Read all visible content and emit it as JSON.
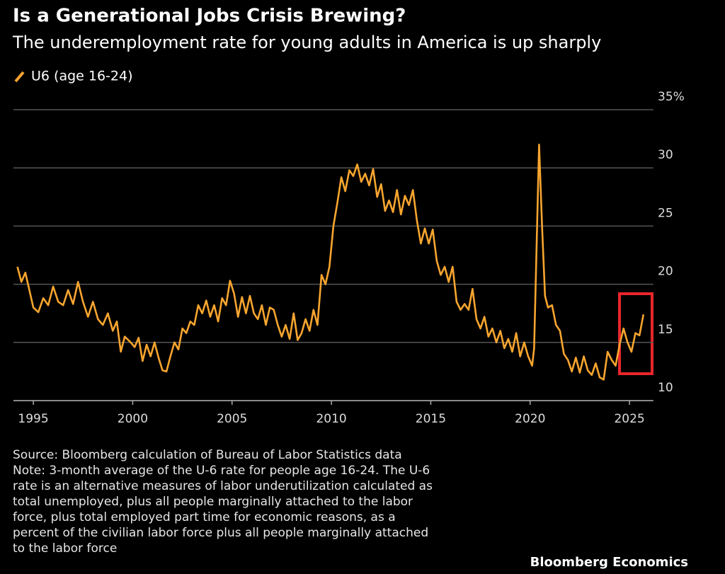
{
  "chart_data": {
    "type": "line",
    "title": "Is a Generational Jobs Crisis Brewing?",
    "subtitle": "The underemployment rate for young adults in America is up sharply",
    "x": [
      1994.2,
      1994.4,
      1994.6,
      1995.0,
      1995.25,
      1995.5,
      1995.75,
      1996.0,
      1996.25,
      1996.5,
      1996.75,
      1997.0,
      1997.25,
      1997.5,
      1997.75,
      1998.0,
      1998.25,
      1998.5,
      1998.75,
      1999.0,
      1999.2,
      1999.4,
      1999.6,
      1999.9,
      2000.1,
      2000.3,
      2000.5,
      2000.7,
      2000.9,
      2001.1,
      2001.3,
      2001.5,
      2001.7,
      2001.9,
      2002.1,
      2002.3,
      2002.5,
      2002.7,
      2002.9,
      2003.1,
      2003.3,
      2003.5,
      2003.7,
      2003.9,
      2004.1,
      2004.3,
      2004.5,
      2004.7,
      2004.9,
      2005.1,
      2005.3,
      2005.5,
      2005.7,
      2005.9,
      2006.1,
      2006.3,
      2006.5,
      2006.7,
      2006.9,
      2007.1,
      2007.3,
      2007.5,
      2007.7,
      2007.9,
      2008.1,
      2008.3,
      2008.5,
      2008.7,
      2008.9,
      2009.1,
      2009.3,
      2009.5,
      2009.7,
      2009.9,
      2010.1,
      2010.3,
      2010.5,
      2010.7,
      2010.9,
      2011.1,
      2011.3,
      2011.5,
      2011.7,
      2011.9,
      2012.1,
      2012.3,
      2012.5,
      2012.7,
      2012.9,
      2013.1,
      2013.3,
      2013.5,
      2013.7,
      2013.9,
      2014.1,
      2014.3,
      2014.5,
      2014.7,
      2014.9,
      2015.1,
      2015.3,
      2015.5,
      2015.7,
      2015.9,
      2016.1,
      2016.3,
      2016.5,
      2016.7,
      2016.9,
      2017.1,
      2017.3,
      2017.5,
      2017.7,
      2017.9,
      2018.1,
      2018.3,
      2018.5,
      2018.7,
      2018.9,
      2019.1,
      2019.3,
      2019.5,
      2019.7,
      2019.9,
      2020.1,
      2020.2,
      2020.35,
      2020.45,
      2020.6,
      2020.75,
      2020.9,
      2021.1,
      2021.3,
      2021.5,
      2021.7,
      2021.9,
      2022.1,
      2022.3,
      2022.5,
      2022.7,
      2022.9,
      2023.1,
      2023.3,
      2023.5,
      2023.7,
      2023.9,
      2024.1,
      2024.3,
      2024.5,
      2024.7,
      2024.9,
      2025.1,
      2025.3,
      2025.5,
      2025.7
    ],
    "series": [
      {
        "name": "U6 (age 16-24)",
        "color": "#f7a52f",
        "values": [
          21.5,
          20.2,
          21,
          18,
          17.6,
          18.8,
          18.2,
          19.8,
          18.5,
          18.2,
          19.5,
          18.3,
          20.2,
          18.5,
          17.2,
          18.5,
          17,
          16.5,
          17.5,
          16,
          16.8,
          14.2,
          15.5,
          15,
          14.6,
          15.4,
          13.4,
          14.8,
          13.8,
          15,
          13.7,
          12.6,
          12.5,
          13.8,
          15,
          14.4,
          16.2,
          15.8,
          16.8,
          16.5,
          18.2,
          17.5,
          18.6,
          17.2,
          18.2,
          16.8,
          18.8,
          18.2,
          20.3,
          19.2,
          17.2,
          18.9,
          17.5,
          19,
          17.5,
          17,
          18.2,
          16.5,
          18,
          17.8,
          16.5,
          15.5,
          16.5,
          15.3,
          17.5,
          15.2,
          15.8,
          17,
          16,
          17.8,
          16.5,
          20.8,
          20,
          21.5,
          25,
          27,
          29.2,
          28,
          29.8,
          29.3,
          30.3,
          28.8,
          29.5,
          28.5,
          29.9,
          27.5,
          28.6,
          26.3,
          27.2,
          26.2,
          28.1,
          26,
          27.6,
          26.8,
          28.1,
          25.5,
          23.5,
          24.8,
          23.5,
          24.7,
          22,
          20.8,
          21.5,
          20.2,
          21.5,
          18.5,
          17.8,
          18.3,
          17.8,
          19.6,
          17,
          16.2,
          17.2,
          15.5,
          16.2,
          15,
          16,
          14.5,
          15.3,
          14.2,
          15.8,
          13.8,
          15,
          13.8,
          13,
          14.5,
          25,
          32,
          25,
          19,
          18,
          18.2,
          16.5,
          16,
          14,
          13.5,
          12.5,
          13.7,
          12.4,
          13.8,
          12.6,
          12.2,
          13.2,
          12,
          11.8,
          14.2,
          13.5,
          13,
          14.8,
          16.2,
          15,
          14.2,
          15.8,
          15.6,
          17.4
        ]
      }
    ],
    "xlim": [
      1994,
      2026.2
    ],
    "xticks": [
      1995,
      2000,
      2005,
      2010,
      2015,
      2020,
      2025
    ],
    "ylim": [
      10,
      35
    ],
    "yticks": [
      10,
      15,
      20,
      25,
      30,
      {
        "value": 35,
        "label": "35%"
      }
    ],
    "grid": true,
    "source": "Source: Bloomberg calculation of Bureau of Labor Statistics data",
    "note": [
      "Note: 3-month average of the U-6 rate for people age 16-24. The U-6",
      "rate is an alternative measures of labor underutilization calculated as",
      "total unemployed, plus all people marginally attached to the labor",
      "force, plus total employed part time for economic reasons, as a",
      "percent of the civilian labor force plus all people marginally attached",
      "to the labor force"
    ],
    "brand": "Bloomberg Economics"
  }
}
